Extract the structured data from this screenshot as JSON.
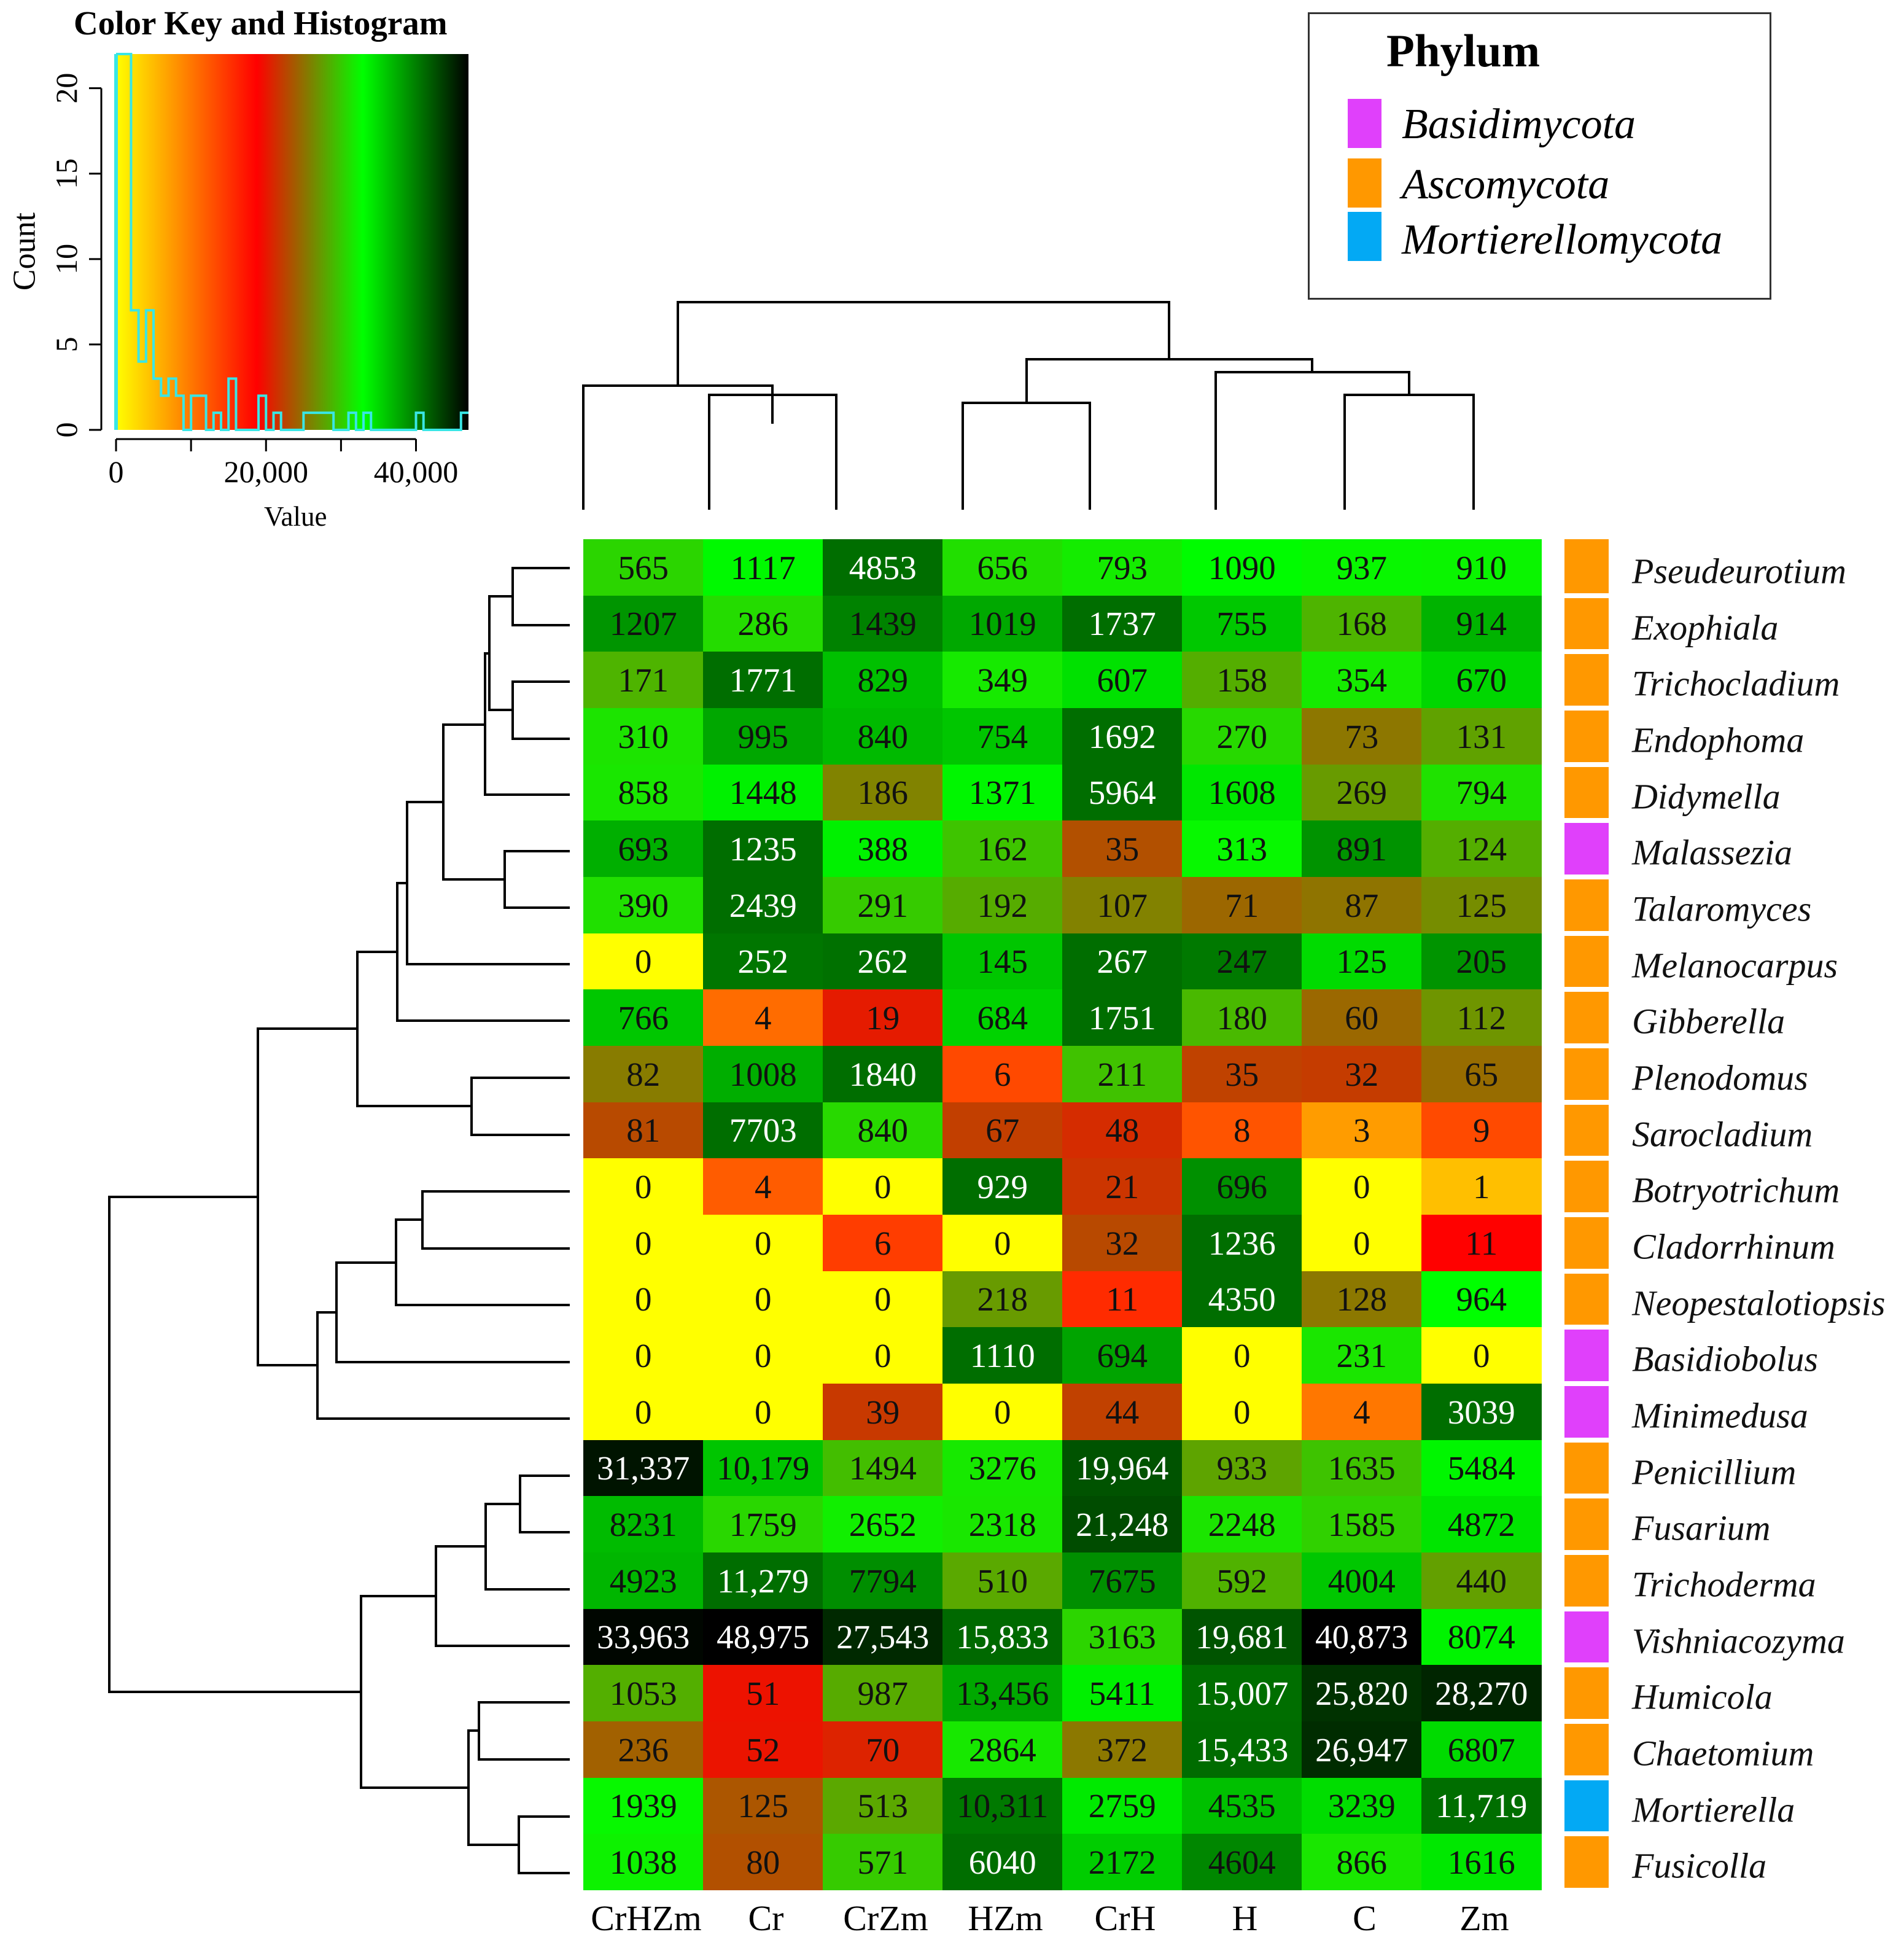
{
  "color_key": {
    "title": "Color Key and Histogram",
    "xlabel": "Value",
    "ylabel": "Count",
    "x_ticks": [
      "0",
      "20,000",
      "40,000"
    ],
    "y_ticks": [
      "0",
      "5",
      "10",
      "15",
      "20"
    ],
    "xlim": [
      0,
      47000
    ],
    "ylim": [
      0,
      22
    ],
    "gradient_stops": [
      "#ffff00",
      "#ff0000",
      "#00ff00",
      "#000000"
    ],
    "histogram_color": "#39e6e6"
  },
  "legend": {
    "title": "Phylum",
    "items": [
      {
        "label": "Basidimycota",
        "color": "#e040fb"
      },
      {
        "label": "Ascomycota",
        "color": "#ff9800"
      },
      {
        "label": "Mortierellomycota",
        "color": "#03a9f4"
      }
    ]
  },
  "chart_data": {
    "type": "heatmap",
    "title": "Color Key and Histogram",
    "columns": [
      "CrHZm",
      "Cr",
      "CrZm",
      "HZm",
      "CrH",
      "H",
      "C",
      "Zm"
    ],
    "rows": [
      {
        "name": "Pseudeurotium",
        "phylum": "Ascomycota",
        "values": [
          "565",
          "1117",
          "4853",
          "656",
          "793",
          "1090",
          "937",
          "910"
        ]
      },
      {
        "name": "Exophiala",
        "phylum": "Ascomycota",
        "values": [
          "1207",
          "286",
          "1439",
          "1019",
          "1737",
          "755",
          "168",
          "914"
        ]
      },
      {
        "name": "Trichocladium",
        "phylum": "Ascomycota",
        "values": [
          "171",
          "1771",
          "829",
          "349",
          "607",
          "158",
          "354",
          "670"
        ]
      },
      {
        "name": "Endophoma",
        "phylum": "Ascomycota",
        "values": [
          "310",
          "995",
          "840",
          "754",
          "1692",
          "270",
          "73",
          "131"
        ]
      },
      {
        "name": "Didymella",
        "phylum": "Ascomycota",
        "values": [
          "858",
          "1448",
          "186",
          "1371",
          "5964",
          "1608",
          "269",
          "794"
        ]
      },
      {
        "name": "Malassezia",
        "phylum": "Basidimycota",
        "values": [
          "693",
          "1235",
          "388",
          "162",
          "35",
          "313",
          "891",
          "124"
        ]
      },
      {
        "name": "Talaromyces",
        "phylum": "Ascomycota",
        "values": [
          "390",
          "2439",
          "291",
          "192",
          "107",
          "71",
          "87",
          "125"
        ]
      },
      {
        "name": "Melanocarpus",
        "phylum": "Ascomycota",
        "values": [
          "0",
          "252",
          "262",
          "145",
          "267",
          "247",
          "125",
          "205"
        ]
      },
      {
        "name": "Gibberella",
        "phylum": "Ascomycota",
        "values": [
          "766",
          "4",
          "19",
          "684",
          "1751",
          "180",
          "60",
          "112"
        ]
      },
      {
        "name": "Plenodomus",
        "phylum": "Ascomycota",
        "values": [
          "82",
          "1008",
          "1840",
          "6",
          "211",
          "35",
          "32",
          "65"
        ]
      },
      {
        "name": "Sarocladium",
        "phylum": "Ascomycota",
        "values": [
          "81",
          "7703",
          "840",
          "67",
          "48",
          "8",
          "3",
          "9"
        ]
      },
      {
        "name": "Botryotrichum",
        "phylum": "Ascomycota",
        "values": [
          "0",
          "4",
          "0",
          "929",
          "21",
          "696",
          "0",
          "1"
        ]
      },
      {
        "name": "Cladorrhinum",
        "phylum": "Ascomycota",
        "values": [
          "0",
          "0",
          "6",
          "0",
          "32",
          "1236",
          "0",
          "11"
        ]
      },
      {
        "name": "Neopestalotiopsis",
        "phylum": "Ascomycota",
        "values": [
          "0",
          "0",
          "0",
          "218",
          "11",
          "4350",
          "128",
          "964"
        ]
      },
      {
        "name": "Basidiobolus",
        "phylum": "Basidimycota",
        "values": [
          "0",
          "0",
          "0",
          "1110",
          "694",
          "0",
          "231",
          "0"
        ]
      },
      {
        "name": "Minimedusa",
        "phylum": "Basidimycota",
        "values": [
          "0",
          "0",
          "39",
          "0",
          "44",
          "0",
          "4",
          "3039"
        ]
      },
      {
        "name": "Penicillium",
        "phylum": "Ascomycota",
        "values": [
          "31,337",
          "10,179",
          "1494",
          "3276",
          "19,964",
          "933",
          "1635",
          "5484"
        ]
      },
      {
        "name": "Fusarium",
        "phylum": "Ascomycota",
        "values": [
          "8231",
          "1759",
          "2652",
          "2318",
          "21,248",
          "2248",
          "1585",
          "4872"
        ]
      },
      {
        "name": "Trichoderma",
        "phylum": "Ascomycota",
        "values": [
          "4923",
          "11,279",
          "7794",
          "510",
          "7675",
          "592",
          "4004",
          "440"
        ]
      },
      {
        "name": "Vishniacozyma",
        "phylum": "Basidimycota",
        "values": [
          "33,963",
          "48,975",
          "27,543",
          "15,833",
          "3163",
          "19,681",
          "40,873",
          "8074"
        ]
      },
      {
        "name": "Humicola",
        "phylum": "Ascomycota",
        "values": [
          "1053",
          "51",
          "987",
          "13,456",
          "5411",
          "15,007",
          "25,820",
          "28,270"
        ]
      },
      {
        "name": "Chaetomium",
        "phylum": "Ascomycota",
        "values": [
          "236",
          "52",
          "70",
          "2864",
          "372",
          "15,433",
          "26,947",
          "6807"
        ]
      },
      {
        "name": "Mortierella",
        "phylum": "Mortierellomycota",
        "values": [
          "1939",
          "125",
          "513",
          "10,311",
          "2759",
          "4535",
          "3239",
          "11,719"
        ]
      },
      {
        "name": "Fusicolla",
        "phylum": "Ascomycota",
        "values": [
          "1038",
          "80",
          "571",
          "6040",
          "2172",
          "4604",
          "866",
          "1616"
        ]
      }
    ]
  }
}
